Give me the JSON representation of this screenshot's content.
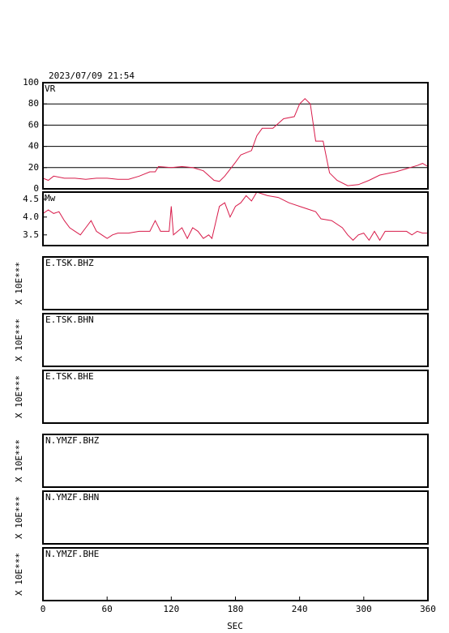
{
  "title": "2023/07/09 21:54",
  "x_axis": {
    "label": "SEC",
    "xlim": [
      0,
      360
    ],
    "xticks": [
      0,
      60,
      120,
      180,
      240,
      300,
      360
    ]
  },
  "chart_data": [
    {
      "type": "line",
      "label": "VR",
      "color": "#d81b4a",
      "grid": true,
      "ylim": [
        0,
        100
      ],
      "yticks": [
        0,
        20,
        40,
        60,
        80,
        100
      ],
      "x": [
        0,
        5,
        10,
        20,
        30,
        40,
        50,
        60,
        70,
        80,
        90,
        100,
        105,
        108,
        120,
        130,
        140,
        150,
        160,
        165,
        170,
        180,
        185,
        195,
        200,
        205,
        215,
        225,
        235,
        240,
        245,
        250,
        255,
        262,
        268,
        275,
        285,
        295,
        305,
        315,
        330,
        340,
        350,
        355,
        360
      ],
      "values": [
        10,
        8,
        12,
        10,
        10,
        9,
        10,
        10,
        9,
        9,
        12,
        16,
        16,
        21,
        20,
        21,
        20,
        17,
        8,
        7,
        12,
        25,
        32,
        36,
        50,
        57,
        57,
        66,
        68,
        80,
        85,
        80,
        45,
        45,
        15,
        8,
        3,
        4,
        8,
        13,
        16,
        19,
        22,
        24,
        21
      ]
    },
    {
      "type": "line",
      "label": "Mw",
      "color": "#d81b4a",
      "grid": false,
      "ylim": [
        3.2,
        4.7
      ],
      "yticks": [
        3.5,
        {
          "value": 4,
          "label": "4.0"
        },
        4.5
      ],
      "x": [
        0,
        5,
        10,
        15,
        20,
        25,
        30,
        35,
        40,
        45,
        50,
        55,
        60,
        65,
        70,
        80,
        90,
        100,
        105,
        110,
        118,
        120,
        122,
        130,
        135,
        140,
        145,
        150,
        155,
        158,
        165,
        170,
        175,
        180,
        185,
        190,
        195,
        200,
        210,
        220,
        230,
        240,
        250,
        255,
        260,
        270,
        280,
        285,
        290,
        295,
        300,
        305,
        310,
        315,
        320,
        330,
        340,
        345,
        350,
        355,
        360
      ],
      "values": [
        4.1,
        4.2,
        4.1,
        4.15,
        3.9,
        3.7,
        3.6,
        3.5,
        3.7,
        3.9,
        3.6,
        3.5,
        3.4,
        3.5,
        3.55,
        3.55,
        3.6,
        3.6,
        3.9,
        3.6,
        3.6,
        4.3,
        3.5,
        3.7,
        3.4,
        3.7,
        3.6,
        3.4,
        3.5,
        3.4,
        4.3,
        4.4,
        4.0,
        4.3,
        4.4,
        4.6,
        4.45,
        4.7,
        4.6,
        4.55,
        4.4,
        4.3,
        4.2,
        4.15,
        3.95,
        3.9,
        3.7,
        3.5,
        3.35,
        3.5,
        3.55,
        3.35,
        3.6,
        3.35,
        3.6,
        3.6,
        3.6,
        3.5,
        3.6,
        3.55,
        3.55
      ]
    }
  ],
  "stations": [
    {
      "name": "E.TSK.BHZ",
      "scale": "X 10E***"
    },
    {
      "name": "E.TSK.BHN",
      "scale": "X 10E***"
    },
    {
      "name": "E.TSK.BHE",
      "scale": "X 10E***"
    },
    {
      "name": "N.YMZF.BHZ",
      "scale": "X 10E***"
    },
    {
      "name": "N.YMZF.BHN",
      "scale": "X 10E***"
    },
    {
      "name": "N.YMZF.BHE",
      "scale": "X 10E***"
    }
  ]
}
